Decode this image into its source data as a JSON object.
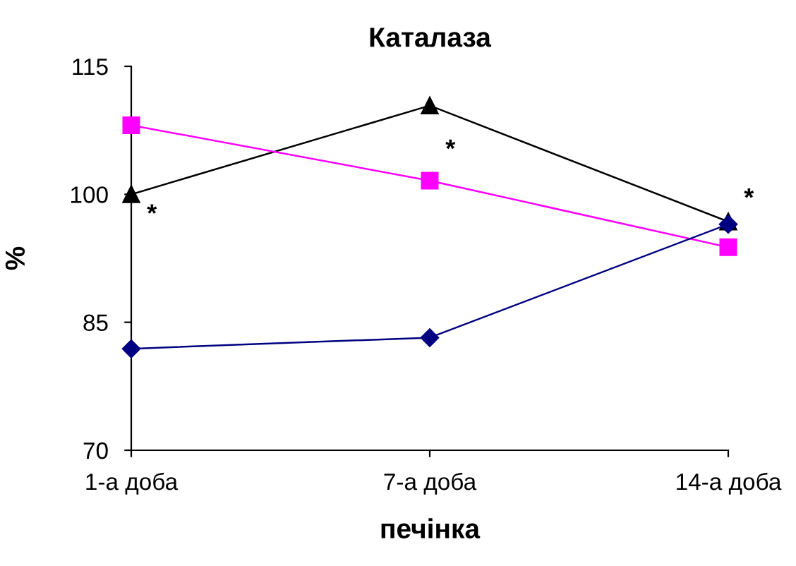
{
  "chart_data": {
    "type": "line",
    "title": "Каталаза",
    "xlabel": "печінка",
    "ylabel": "%",
    "categories": [
      "1-а доба",
      "7-а доба",
      "14-а доба"
    ],
    "series": [
      {
        "color": "#000080",
        "values": [
          81.9,
          83.2,
          96.5
        ],
        "marker": "diamond"
      },
      {
        "color": "#ff00ff",
        "values": [
          108.1,
          101.6,
          93.8
        ],
        "marker": "square"
      },
      {
        "color": "#000000",
        "values": [
          100.0,
          110.4,
          96.8
        ],
        "marker": "triangle"
      }
    ],
    "ylim": [
      70,
      115
    ],
    "yticks": [
      70,
      85,
      100,
      115
    ],
    "grid": false,
    "legend": false,
    "line_style": "solid",
    "annotations": [
      {
        "text": "*",
        "x": "1-а доба",
        "y": 100.0
      },
      {
        "text": "*",
        "x": "7-а доба",
        "y": 101.6
      },
      {
        "text": "*",
        "x": "14-а доба",
        "y": 96.8
      }
    ]
  }
}
